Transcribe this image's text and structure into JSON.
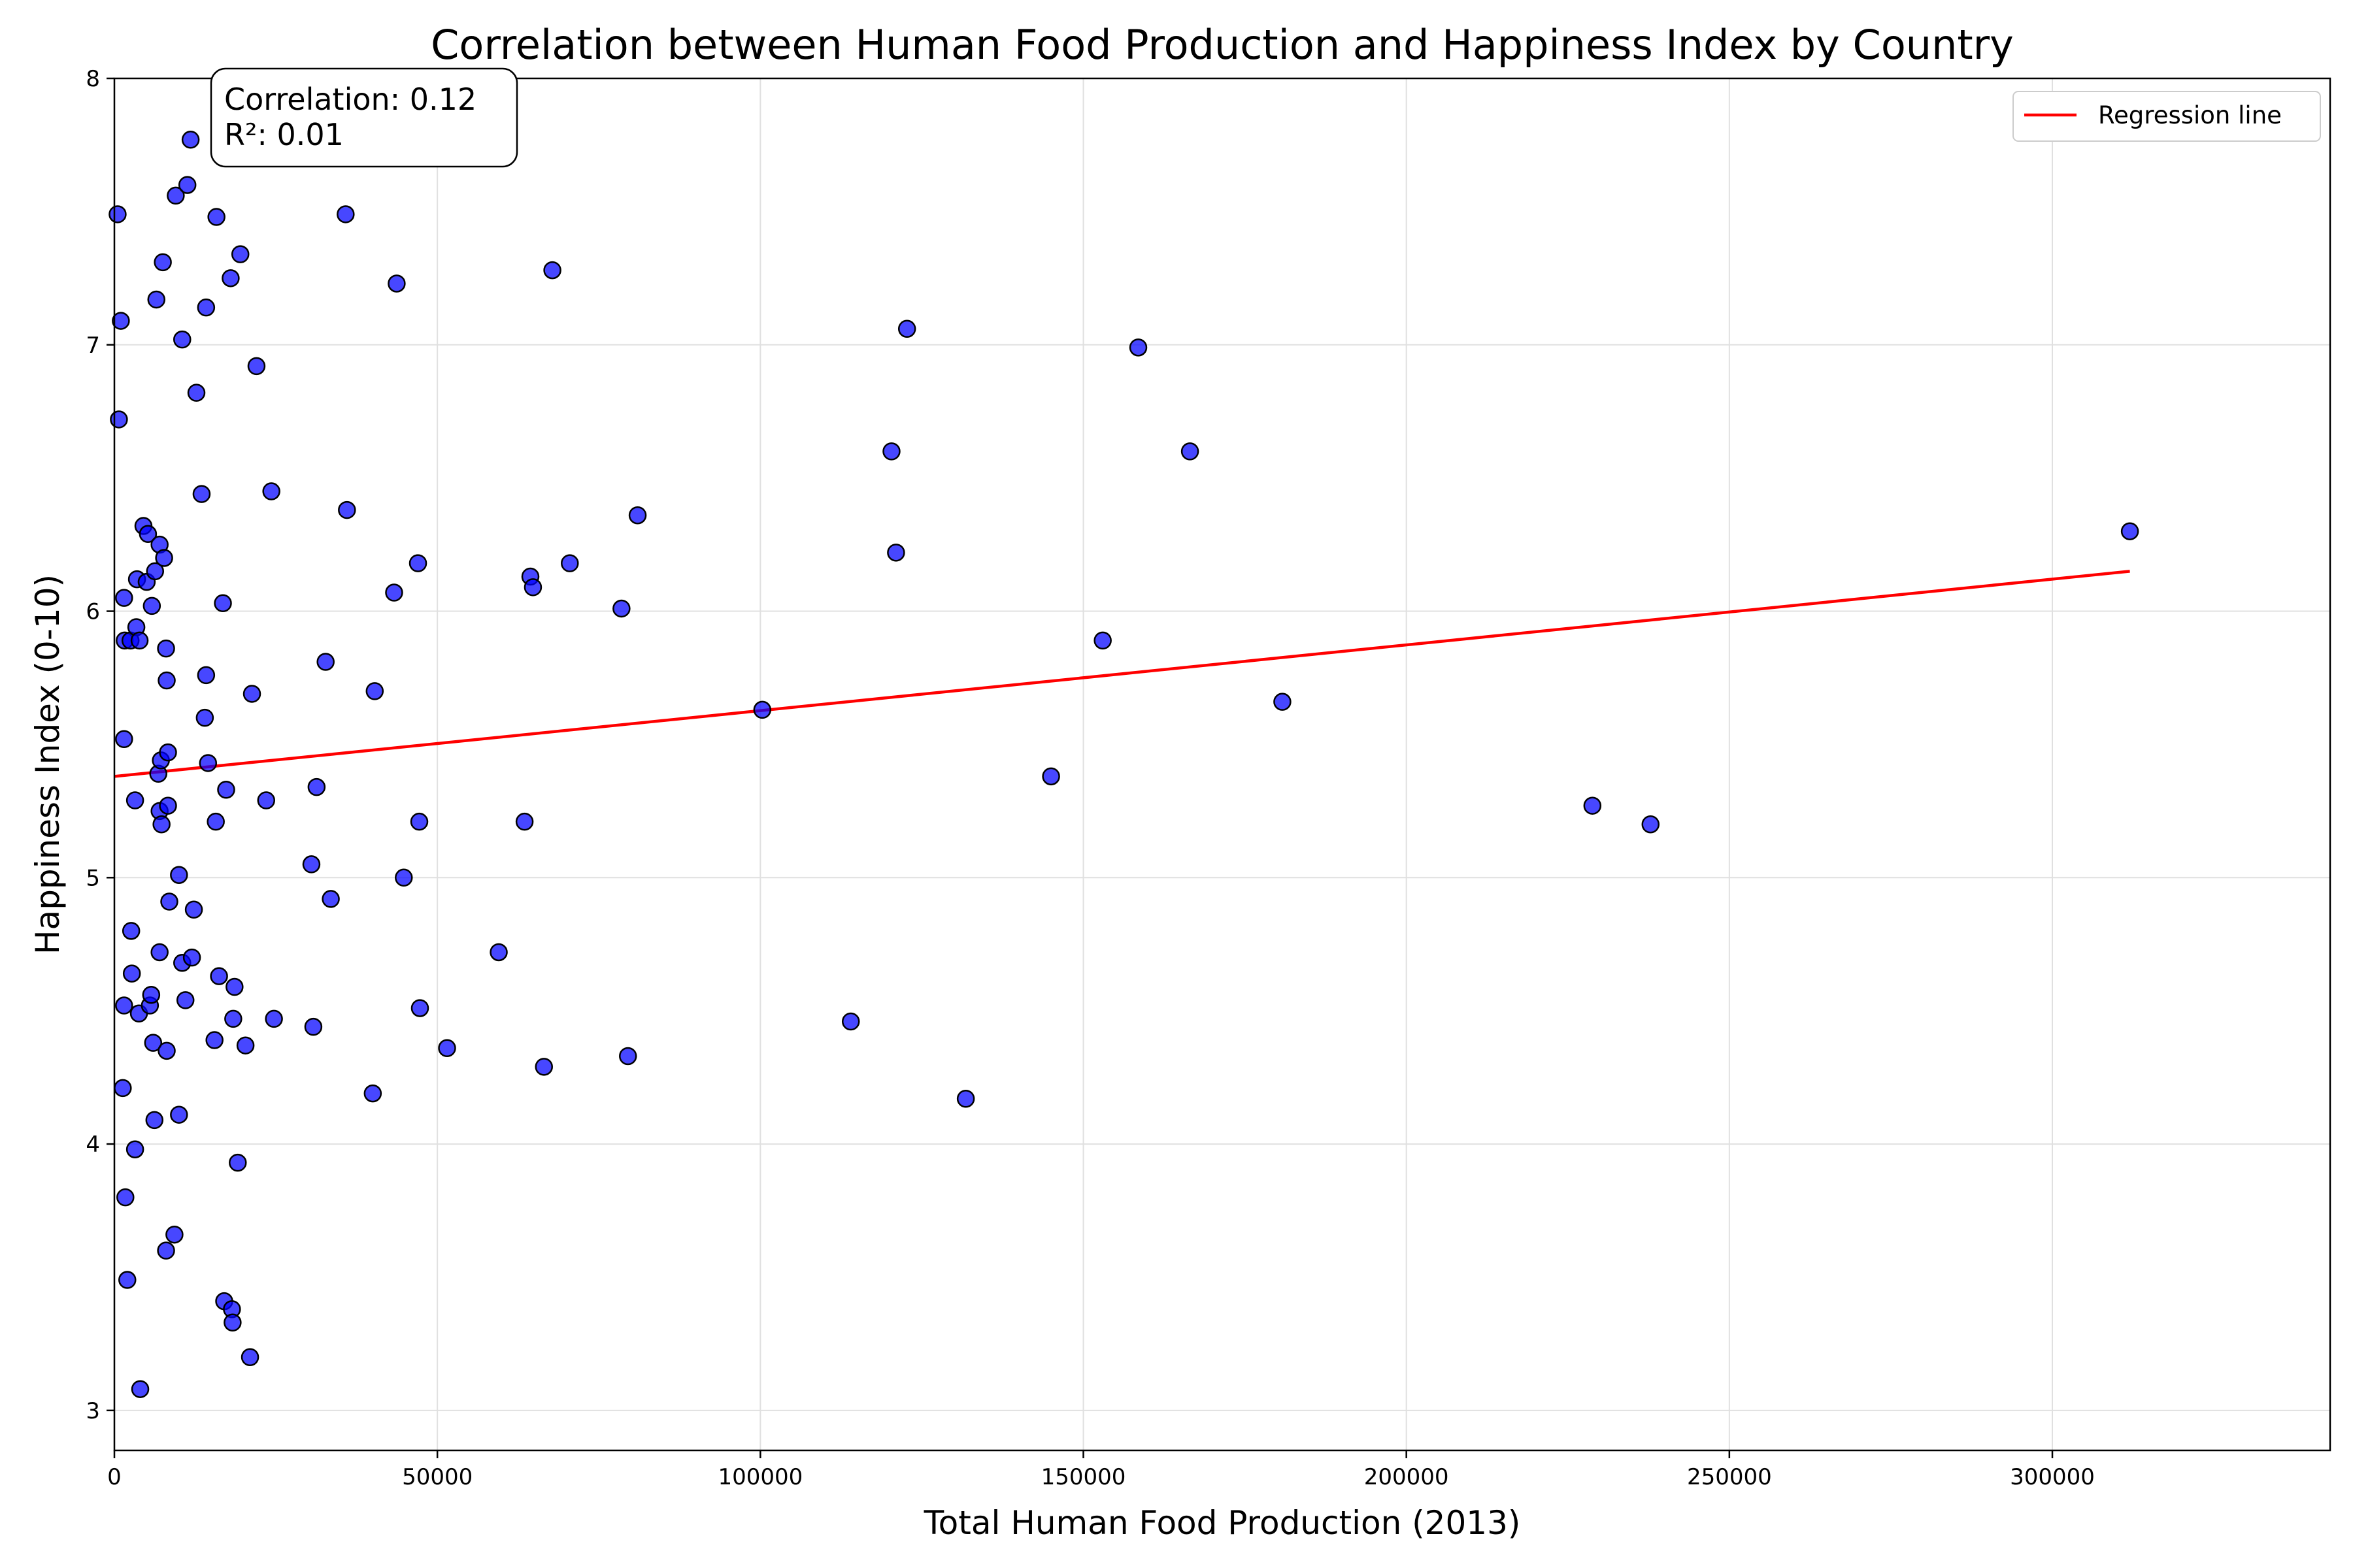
{
  "chart_data": {
    "type": "scatter",
    "title": "Correlation between Human Food Production and Happiness Index by Country",
    "xlabel": "Total Human Food Production (2013)",
    "ylabel": "Happiness Index (0-10)",
    "xlim": [
      0,
      343000
    ],
    "ylim": [
      2.85,
      8.0
    ],
    "xticks": [
      0,
      50000,
      100000,
      150000,
      200000,
      250000,
      300000
    ],
    "yticks": [
      3,
      4,
      5,
      6,
      7,
      8
    ],
    "grid": true,
    "legend_position": "top-right",
    "colors": {
      "points": "#0000ff",
      "point_edge": "#000000",
      "regression": "#ff0000",
      "grid": "#e0e0e0"
    },
    "annotation": {
      "line1": "Correlation: 0.12",
      "line2": "R²: 0.01"
    },
    "regression": {
      "name": "Regression line",
      "x": [
        0,
        312000
      ],
      "y": [
        5.38,
        6.15
      ]
    },
    "points": [
      [
        500,
        7.49
      ],
      [
        1000,
        7.09
      ],
      [
        700,
        6.72
      ],
      [
        1500,
        6.05
      ],
      [
        1500,
        5.52
      ],
      [
        1500,
        4.52
      ],
      [
        1300,
        4.21
      ],
      [
        1700,
        3.8
      ],
      [
        2000,
        3.49
      ],
      [
        1600,
        5.89
      ],
      [
        2500,
        5.89
      ],
      [
        2600,
        4.8
      ],
      [
        2700,
        4.64
      ],
      [
        3200,
        3.98
      ],
      [
        3200,
        5.29
      ],
      [
        3400,
        5.94
      ],
      [
        3500,
        6.12
      ],
      [
        3900,
        5.89
      ],
      [
        3800,
        4.49
      ],
      [
        4000,
        3.08
      ],
      [
        4500,
        6.32
      ],
      [
        5000,
        6.11
      ],
      [
        5200,
        6.29
      ],
      [
        5500,
        4.52
      ],
      [
        5700,
        4.56
      ],
      [
        5800,
        6.02
      ],
      [
        6000,
        4.38
      ],
      [
        6200,
        4.09
      ],
      [
        6300,
        6.15
      ],
      [
        6500,
        7.17
      ],
      [
        7000,
        6.25
      ],
      [
        6800,
        5.39
      ],
      [
        7000,
        5.25
      ],
      [
        7200,
        5.44
      ],
      [
        7000,
        4.72
      ],
      [
        7300,
        5.2
      ],
      [
        7500,
        7.31
      ],
      [
        7700,
        6.2
      ],
      [
        8000,
        5.86
      ],
      [
        8100,
        5.74
      ],
      [
        8100,
        4.35
      ],
      [
        8000,
        3.6
      ],
      [
        8300,
        5.27
      ],
      [
        8300,
        5.47
      ],
      [
        8500,
        4.91
      ],
      [
        9300,
        3.66
      ],
      [
        9500,
        7.56
      ],
      [
        10000,
        4.11
      ],
      [
        10000,
        5.01
      ],
      [
        10500,
        7.02
      ],
      [
        10500,
        4.68
      ],
      [
        11000,
        4.54
      ],
      [
        11300,
        7.6
      ],
      [
        11800,
        7.77
      ],
      [
        12000,
        4.7
      ],
      [
        12300,
        4.88
      ],
      [
        12700,
        6.82
      ],
      [
        13500,
        6.44
      ],
      [
        14000,
        5.6
      ],
      [
        14200,
        7.14
      ],
      [
        14200,
        5.76
      ],
      [
        14500,
        5.43
      ],
      [
        15500,
        4.39
      ],
      [
        15700,
        5.21
      ],
      [
        15800,
        7.48
      ],
      [
        16200,
        4.63
      ],
      [
        16800,
        6.03
      ],
      [
        17000,
        3.41
      ],
      [
        17300,
        5.33
      ],
      [
        18000,
        7.25
      ],
      [
        18200,
        3.38
      ],
      [
        18300,
        3.33
      ],
      [
        18400,
        4.47
      ],
      [
        18600,
        4.59
      ],
      [
        19100,
        3.93
      ],
      [
        19500,
        7.34
      ],
      [
        20300,
        4.37
      ],
      [
        21000,
        3.2
      ],
      [
        21300,
        5.69
      ],
      [
        22000,
        6.92
      ],
      [
        23500,
        5.29
      ],
      [
        24300,
        6.45
      ],
      [
        24700,
        4.47
      ],
      [
        30500,
        5.05
      ],
      [
        30800,
        4.44
      ],
      [
        31300,
        5.34
      ],
      [
        32700,
        5.81
      ],
      [
        33500,
        4.92
      ],
      [
        35800,
        7.49
      ],
      [
        36000,
        6.38
      ],
      [
        40000,
        4.19
      ],
      [
        40300,
        5.7
      ],
      [
        43300,
        6.07
      ],
      [
        43700,
        7.23
      ],
      [
        44800,
        5.0
      ],
      [
        47000,
        6.18
      ],
      [
        47200,
        5.21
      ],
      [
        47300,
        4.51
      ],
      [
        51500,
        4.36
      ],
      [
        59500,
        4.72
      ],
      [
        63500,
        5.21
      ],
      [
        64400,
        6.13
      ],
      [
        64800,
        6.09
      ],
      [
        66500,
        4.29
      ],
      [
        67800,
        7.28
      ],
      [
        70500,
        6.18
      ],
      [
        78500,
        6.01
      ],
      [
        79500,
        4.33
      ],
      [
        81000,
        6.36
      ],
      [
        100300,
        5.63
      ],
      [
        114000,
        4.46
      ],
      [
        120300,
        6.6
      ],
      [
        121000,
        6.22
      ],
      [
        122700,
        7.06
      ],
      [
        131800,
        4.17
      ],
      [
        145000,
        5.38
      ],
      [
        153000,
        5.89
      ],
      [
        158500,
        6.99
      ],
      [
        166500,
        6.6
      ],
      [
        180800,
        5.66
      ],
      [
        228800,
        5.27
      ],
      [
        237800,
        5.2
      ],
      [
        312000,
        6.3
      ]
    ]
  }
}
